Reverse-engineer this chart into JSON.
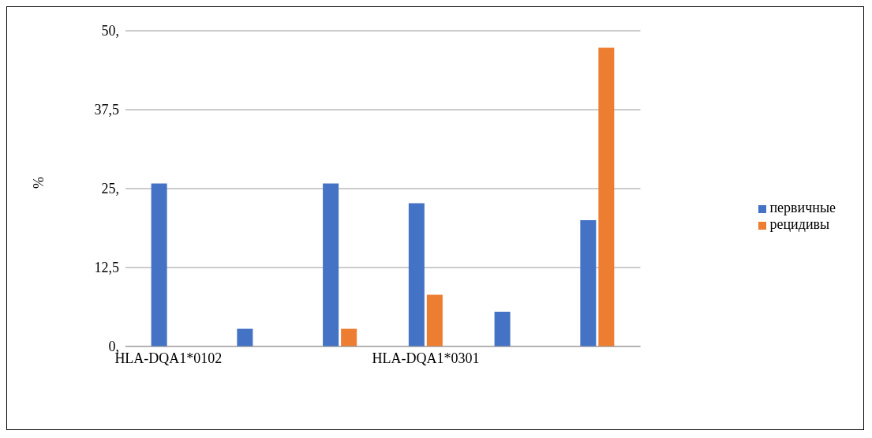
{
  "chart_data": {
    "type": "bar",
    "ylabel": "%",
    "categories": [
      "HLA-DQA1*0102",
      null,
      null,
      "HLA-DQA1*0301",
      null,
      null
    ],
    "series": [
      {
        "name": "первичные",
        "color": "#4472c4",
        "values": [
          25.8,
          2.8,
          25.8,
          22.7,
          5.5,
          20
        ]
      },
      {
        "name": "рецидивы",
        "color": "#ed7d31",
        "values": [
          0,
          0,
          2.8,
          8.2,
          0,
          47.3
        ]
      }
    ],
    "ylim": [
      0,
      50
    ],
    "yticks": [
      {
        "value": 0,
        "label": "0,"
      },
      {
        "value": 12.5,
        "label": "12,5"
      },
      {
        "value": 25,
        "label": "25,"
      },
      {
        "value": 37.5,
        "label": "37,5"
      },
      {
        "value": 50,
        "label": "50,"
      }
    ],
    "grid": "y",
    "legend": "right"
  }
}
